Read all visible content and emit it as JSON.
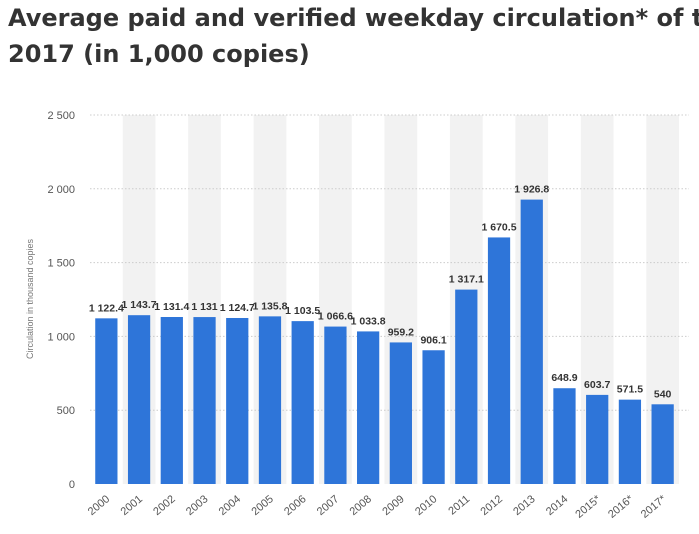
{
  "title_line1": "Average paid and verified weekday circulation* of the",
  "title_line2": "2017 (in 1,000 copies)",
  "colors": {
    "bar": "#2e75d9",
    "band": "#f2f2f2",
    "grid": "#cccccc"
  },
  "chart_data": {
    "type": "bar",
    "categories": [
      "2000",
      "2001",
      "2002",
      "2003",
      "2004",
      "2005",
      "2006",
      "2007",
      "2008",
      "2009",
      "2010",
      "2011",
      "2012",
      "2013",
      "2014",
      "2015*",
      "2016*",
      "2017*"
    ],
    "values": [
      1122.4,
      1143.7,
      1131.4,
      1131,
      1124.7,
      1135.8,
      1103.5,
      1066.6,
      1033.8,
      959.2,
      906.1,
      1317.1,
      1670.5,
      1926.8,
      648.9,
      603.7,
      571.5,
      540
    ],
    "value_labels": [
      "1 122.4",
      "1 143.7",
      "1 131.4",
      "1 131",
      "1 124.7",
      "1 135.8",
      "1 103.5",
      "1 066.6",
      "1 033.8",
      "959.2",
      "906.1",
      "1 317.1",
      "1 670.5",
      "1 926.8",
      "648.9",
      "603.7",
      "571.5",
      "540"
    ],
    "y_ticks": [
      0,
      500,
      1000,
      1500,
      2000,
      2500
    ],
    "y_tick_labels": [
      "0",
      "500",
      "1 000",
      "1 500",
      "2 000",
      "2 500"
    ],
    "ylabel": "Circulation in thousand copies",
    "xlabel": "",
    "ylim": [
      0,
      2500
    ],
    "grid": true
  }
}
